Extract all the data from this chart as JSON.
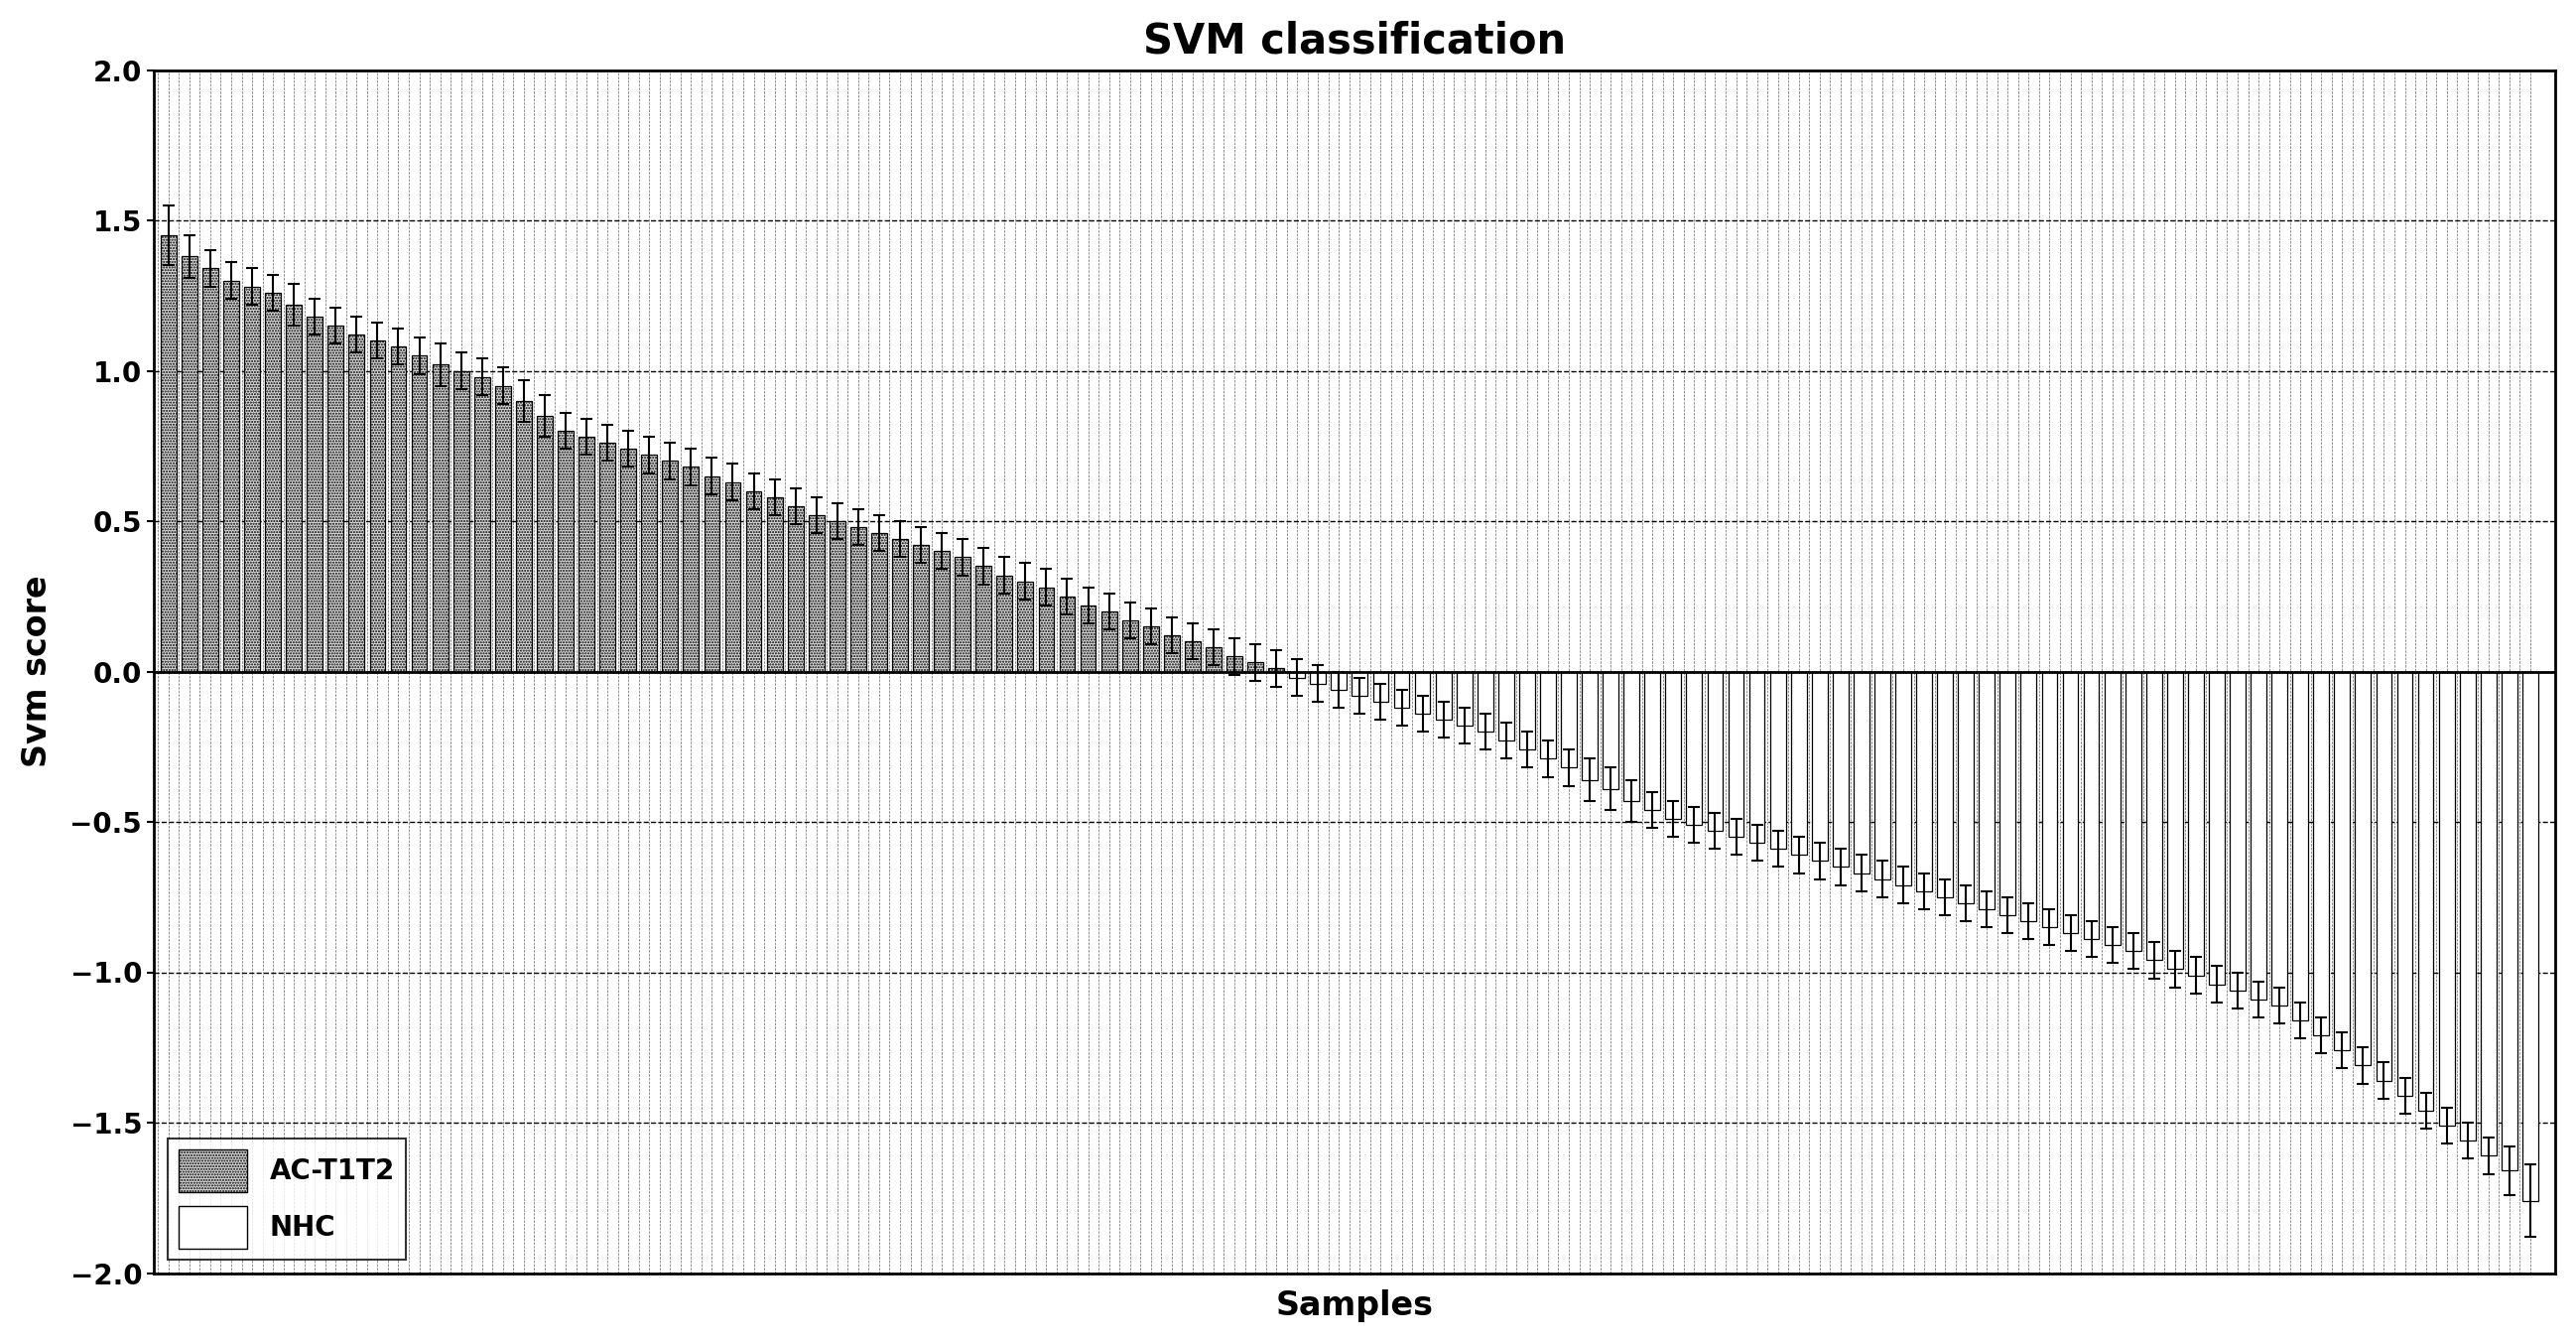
{
  "title": "SVM classification",
  "xlabel": "Samples",
  "ylabel": "Svm score",
  "ylim": [
    -2,
    2
  ],
  "yticks": [
    -2,
    -1.5,
    -1,
    -0.5,
    0,
    0.5,
    1,
    1.5,
    2
  ],
  "background_color": "#ffffff",
  "legend_labels": [
    "AC-T1T2",
    "NHC"
  ],
  "ac_values": [
    1.45,
    1.38,
    1.34,
    1.3,
    1.28,
    1.26,
    1.22,
    1.18,
    1.15,
    1.12,
    1.1,
    1.08,
    1.05,
    1.02,
    1.0,
    0.98,
    0.95,
    0.9,
    0.85,
    0.8,
    0.78,
    0.76,
    0.74,
    0.72,
    0.7,
    0.68,
    0.65,
    0.63,
    0.6,
    0.58,
    0.55,
    0.52,
    0.5,
    0.48,
    0.46,
    0.44,
    0.42,
    0.4,
    0.38,
    0.35,
    0.32,
    0.3,
    0.28,
    0.25,
    0.22,
    0.2,
    0.17,
    0.15,
    0.12,
    0.1,
    0.08,
    0.05,
    0.03,
    0.01
  ],
  "ac_errors": [
    0.1,
    0.07,
    0.06,
    0.06,
    0.06,
    0.06,
    0.07,
    0.06,
    0.06,
    0.06,
    0.06,
    0.06,
    0.06,
    0.07,
    0.06,
    0.06,
    0.06,
    0.07,
    0.07,
    0.06,
    0.06,
    0.06,
    0.06,
    0.06,
    0.06,
    0.06,
    0.06,
    0.06,
    0.06,
    0.06,
    0.06,
    0.06,
    0.06,
    0.06,
    0.06,
    0.06,
    0.06,
    0.06,
    0.06,
    0.06,
    0.06,
    0.06,
    0.06,
    0.06,
    0.06,
    0.06,
    0.06,
    0.06,
    0.06,
    0.06,
    0.06,
    0.06,
    0.06,
    0.06
  ],
  "nhc_values": [
    -0.02,
    -0.04,
    -0.06,
    -0.08,
    -0.1,
    -0.12,
    -0.14,
    -0.16,
    -0.18,
    -0.2,
    -0.23,
    -0.26,
    -0.29,
    -0.32,
    -0.36,
    -0.39,
    -0.43,
    -0.46,
    -0.49,
    -0.51,
    -0.53,
    -0.55,
    -0.57,
    -0.59,
    -0.61,
    -0.63,
    -0.65,
    -0.67,
    -0.69,
    -0.71,
    -0.73,
    -0.75,
    -0.77,
    -0.79,
    -0.81,
    -0.83,
    -0.85,
    -0.87,
    -0.89,
    -0.91,
    -0.93,
    -0.96,
    -0.99,
    -1.01,
    -1.04,
    -1.06,
    -1.09,
    -1.11,
    -1.16,
    -1.21,
    -1.26,
    -1.31,
    -1.36,
    -1.41,
    -1.46,
    -1.51,
    -1.56,
    -1.61,
    -1.66,
    -1.76
  ],
  "nhc_errors": [
    0.06,
    0.06,
    0.06,
    0.06,
    0.06,
    0.06,
    0.06,
    0.06,
    0.06,
    0.06,
    0.06,
    0.06,
    0.06,
    0.06,
    0.07,
    0.07,
    0.07,
    0.06,
    0.06,
    0.06,
    0.06,
    0.06,
    0.06,
    0.06,
    0.06,
    0.06,
    0.06,
    0.06,
    0.06,
    0.06,
    0.06,
    0.06,
    0.06,
    0.06,
    0.06,
    0.06,
    0.06,
    0.06,
    0.06,
    0.06,
    0.06,
    0.06,
    0.06,
    0.06,
    0.06,
    0.06,
    0.06,
    0.06,
    0.06,
    0.06,
    0.06,
    0.06,
    0.06,
    0.06,
    0.06,
    0.06,
    0.06,
    0.06,
    0.08,
    0.12
  ]
}
